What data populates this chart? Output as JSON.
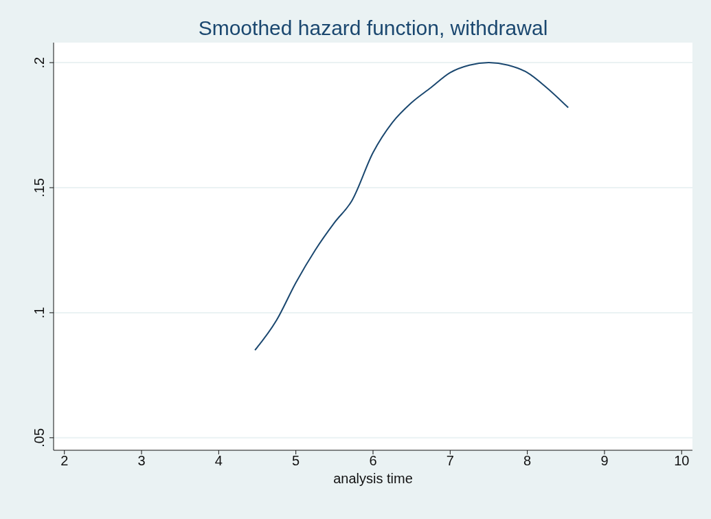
{
  "chart_data": {
    "type": "line",
    "title": "Smoothed hazard function, withdrawal",
    "xlabel": "analysis time",
    "x": [
      4.47,
      4.75,
      5.0,
      5.25,
      5.5,
      5.73,
      6.0,
      6.25,
      6.5,
      6.75,
      7.0,
      7.25,
      7.5,
      7.75,
      8.0,
      8.25,
      8.53
    ],
    "series": [
      {
        "color": "#1a476f",
        "values": [
          0.085,
          0.097,
          0.112,
          0.125,
          0.136,
          0.145,
          0.164,
          0.176,
          0.184,
          0.19,
          0.196,
          0.199,
          0.2,
          0.199,
          0.196,
          0.19,
          0.182
        ]
      }
    ],
    "xlim": [
      1.86,
      10.14
    ],
    "xticks": [
      2,
      3,
      4,
      5,
      6,
      7,
      8,
      9,
      10
    ],
    "ylim": [
      0.045,
      0.208
    ],
    "yticks": [
      {
        "value": 0.05,
        "label": ".05"
      },
      {
        "value": 0.1,
        "label": ".1"
      },
      {
        "value": 0.15,
        "label": ".15"
      },
      {
        "value": 0.2,
        "label": ".2"
      }
    ],
    "grid": "y",
    "marker": "none",
    "line_style": "solid"
  }
}
